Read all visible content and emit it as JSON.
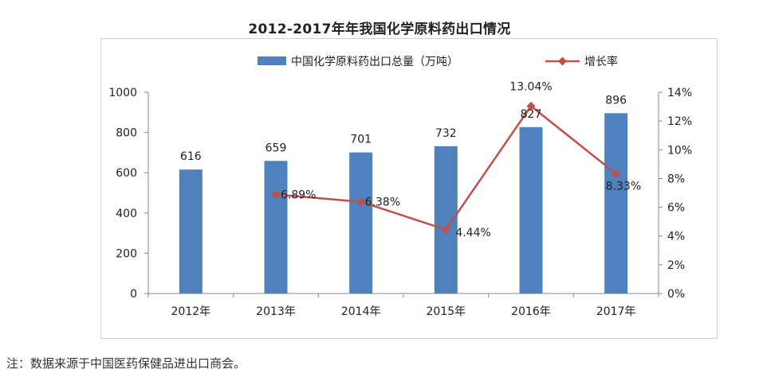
{
  "title": "2012-2017年年我国化学原料药出口情况",
  "note": "注：数据来源于中国医药保健品进出口商会。",
  "colors": {
    "bar": "#4f81bd",
    "line": "#c0504d",
    "axis": "#888888",
    "text": "#222222"
  },
  "chart_data": {
    "type": "bar",
    "title": "2012-2017年年我国化学原料药出口情况",
    "categories": [
      "2012年",
      "2013年",
      "2014年",
      "2015年",
      "2016年",
      "2017年"
    ],
    "series": [
      {
        "name": "中国化学原料药出口总量（万吨）",
        "type": "bar",
        "axis": "left",
        "values": [
          616,
          659,
          701,
          732,
          827,
          896
        ],
        "labels": [
          "616",
          "659",
          "701",
          "732",
          "827",
          "896"
        ]
      },
      {
        "name": "增长率",
        "type": "line",
        "axis": "right",
        "values": [
          null,
          6.89,
          6.38,
          4.44,
          13.04,
          8.33
        ],
        "labels": [
          "",
          "6.89%",
          "6.38%",
          "4.44%",
          "13.04%",
          "8.33%"
        ]
      }
    ],
    "y_left": {
      "range": [
        0,
        1000
      ],
      "ticks": [
        0,
        200,
        400,
        600,
        800,
        1000
      ],
      "tick_labels": [
        "0",
        "200",
        "400",
        "600",
        "800",
        "1000"
      ]
    },
    "y_right": {
      "range": [
        0,
        14
      ],
      "ticks": [
        0,
        2,
        4,
        6,
        8,
        10,
        12,
        14
      ],
      "tick_labels": [
        "0%",
        "2%",
        "4%",
        "6%",
        "8%",
        "10%",
        "12%",
        "14%"
      ]
    },
    "xlabel": "",
    "ylabel": "",
    "legend_position": "top",
    "grid": false
  }
}
